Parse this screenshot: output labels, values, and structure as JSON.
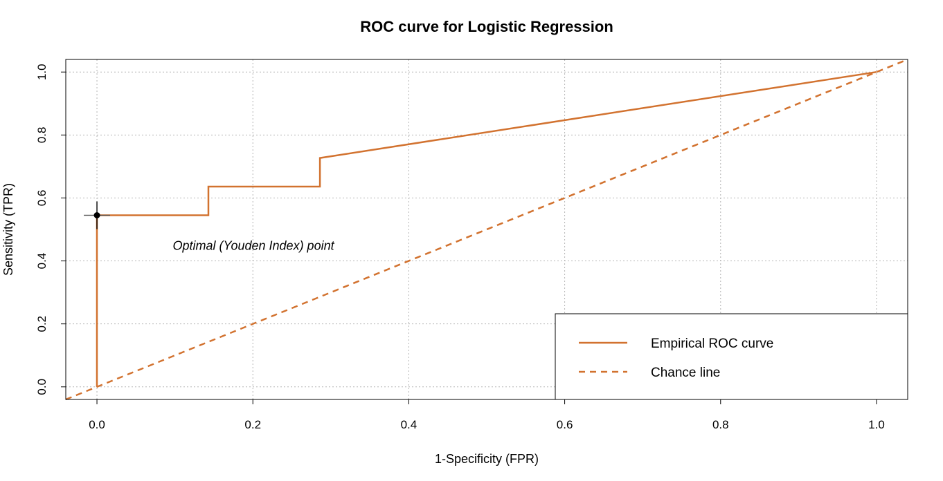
{
  "chart_data": {
    "type": "line",
    "title": "ROC curve for Logistic Regression",
    "xlabel": "1-Specificity (FPR)",
    "ylabel": "Sensitivity (TPR)",
    "xlim": [
      -0.04,
      1.04
    ],
    "ylim": [
      -0.04,
      1.04
    ],
    "xticks": [
      0.0,
      0.2,
      0.4,
      0.6,
      0.8,
      1.0
    ],
    "yticks": [
      0.0,
      0.2,
      0.4,
      0.6,
      0.8,
      1.0
    ],
    "xtick_labels": [
      "0.0",
      "0.2",
      "0.4",
      "0.6",
      "0.8",
      "1.0"
    ],
    "ytick_labels": [
      "0.0",
      "0.2",
      "0.4",
      "0.6",
      "0.8",
      "1.0"
    ],
    "grid": true,
    "legend_position": "bottom-right",
    "series": [
      {
        "name": "Empirical ROC curve",
        "style": "solid",
        "color": "#d2722f",
        "x": [
          0.0,
          0.0,
          0.143,
          0.143,
          0.286,
          0.286,
          1.0
        ],
        "y": [
          0.0,
          0.545,
          0.545,
          0.636,
          0.636,
          0.727,
          1.0
        ]
      },
      {
        "name": "Chance line",
        "style": "dashed",
        "color": "#d2722f",
        "x": [
          -0.04,
          1.04
        ],
        "y": [
          -0.04,
          1.04
        ]
      }
    ],
    "optimal_point": {
      "x": 0.0,
      "y": 0.545,
      "label": "Optimal (Youden Index) point"
    }
  }
}
